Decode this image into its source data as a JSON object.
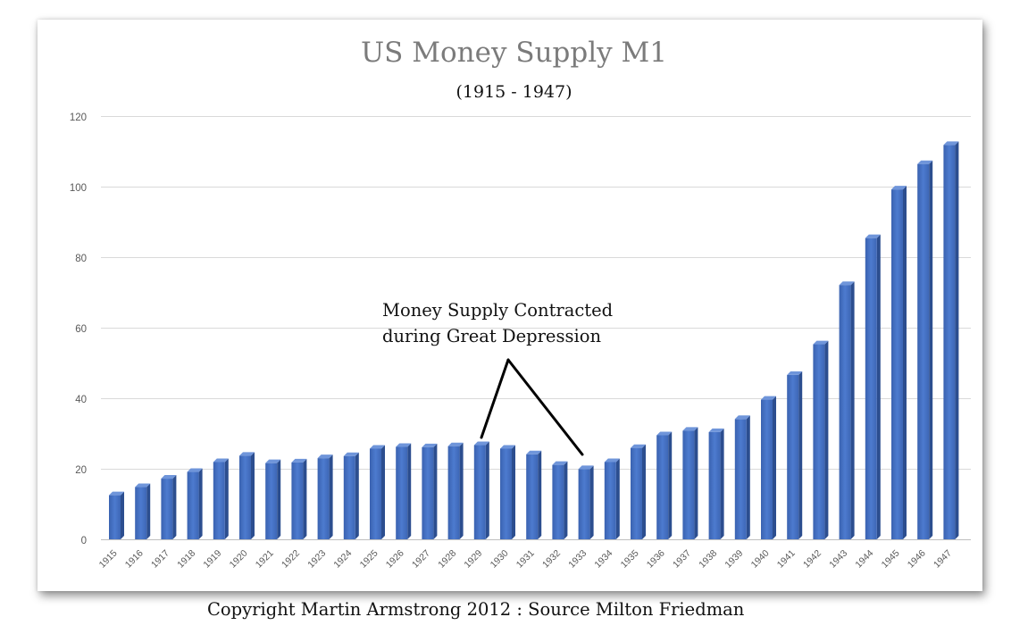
{
  "chart_data": {
    "type": "bar",
    "title": "US Money Supply M1",
    "subtitle": "(1915 - 1947)",
    "xlabel": "",
    "ylabel": "",
    "ylim": [
      0,
      120
    ],
    "yticks": [
      0,
      20,
      40,
      60,
      80,
      100,
      120
    ],
    "grid": true,
    "legend": "none",
    "categories": [
      "1915",
      "1916",
      "1917",
      "1918",
      "1919",
      "1920",
      "1921",
      "1922",
      "1923",
      "1924",
      "1925",
      "1926",
      "1927",
      "1928",
      "1929",
      "1930",
      "1931",
      "1932",
      "1933",
      "1934",
      "1935",
      "1936",
      "1937",
      "1938",
      "1939",
      "1940",
      "1941",
      "1942",
      "1943",
      "1944",
      "1945",
      "1946",
      "1947"
    ],
    "values": [
      12.5,
      14.8,
      17.2,
      19.1,
      21.9,
      23.7,
      21.6,
      21.8,
      23.0,
      23.6,
      25.7,
      26.2,
      26.1,
      26.4,
      26.7,
      25.7,
      24.1,
      21.1,
      19.9,
      21.9,
      25.9,
      29.5,
      30.8,
      30.4,
      34.1,
      39.6,
      46.6,
      55.3,
      72.1,
      85.4,
      99.2,
      106.4,
      111.8
    ],
    "bar_color": "#4472c4",
    "annotations": [
      {
        "text": [
          "Money Supply Contracted",
          "during Great Depression"
        ],
        "points_to": [
          "1929",
          "1933"
        ]
      }
    ]
  },
  "footer": "Copyright Martin Armstrong 2012 : Source Milton Friedman"
}
